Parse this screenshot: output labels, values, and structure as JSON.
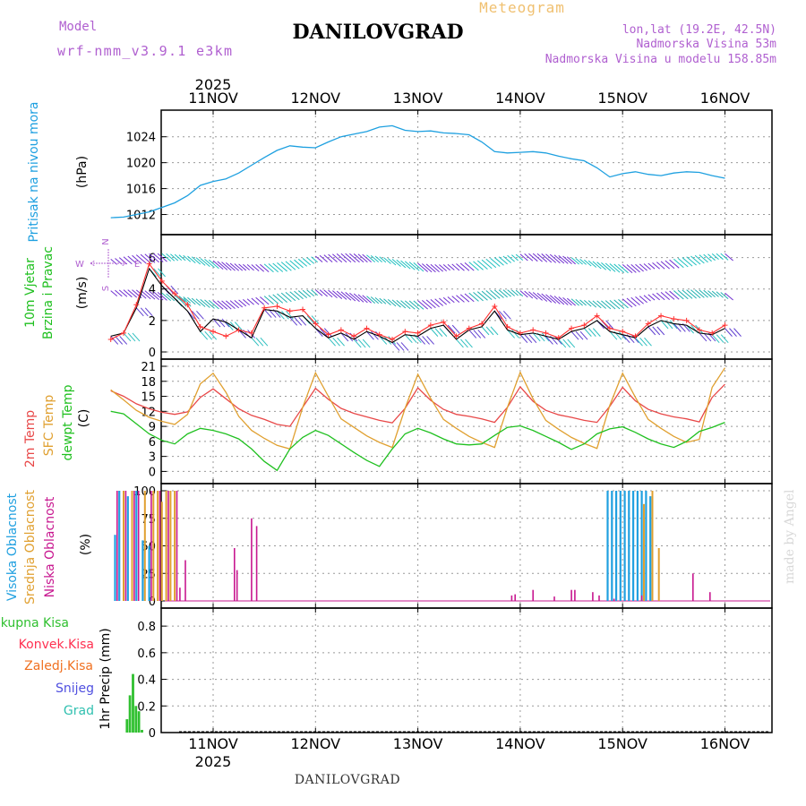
{
  "header": {
    "model_label": "Model",
    "model_name": "wrf-nmm_v3.9.1 e3km",
    "station": "DANILOVGRAD",
    "product": "Meteogram",
    "lonlat": "lon,lat (19.2E, 42.5N)",
    "elevation": "Nadmorska Visina 53m",
    "model_elevation": "Nadmorska Visina u modelu 158.85m",
    "footer_station": "DANILOVGRAD",
    "credit": "made by Angel"
  },
  "colors": {
    "pressure": "#1ea0e0",
    "wind_speed": "#000000",
    "gust": "#ff3030",
    "temp2m": "#e84848",
    "sfc_temp": "#e0a030",
    "dewpt": "#20c020",
    "high_cloud": "#20a0e0",
    "mid_cloud": "#e0a030",
    "low_cloud": "#c81890",
    "total_precip": "#30c030",
    "label_purple": "#b060d0",
    "label_orange": "#f0c070",
    "grid": "#999999"
  },
  "time_axis": {
    "year": "2025",
    "days": [
      "11NOV",
      "12NOV",
      "13NOV",
      "14NOV",
      "15NOV",
      "16NOV"
    ]
  },
  "chart_data": [
    {
      "type": "line",
      "id": "pressure",
      "ylabel_main": "Pritisak na nivou mora",
      "unit": "(hPa)",
      "ylim": [
        1010,
        1027
      ],
      "yticks": [
        "1012",
        "1016",
        "1020",
        "1024"
      ],
      "x_hours": [
        0,
        3,
        6,
        9,
        12,
        15,
        18,
        21,
        24,
        27,
        30,
        33,
        36,
        39,
        42,
        45,
        48,
        51,
        54,
        57,
        60,
        63,
        66,
        69,
        72,
        75,
        78,
        81,
        84,
        87,
        90,
        93,
        96,
        99,
        102,
        105,
        108,
        111,
        114,
        117,
        120,
        123,
        126,
        129,
        132,
        135,
        138,
        141,
        144
      ],
      "values": [
        1011.5,
        1011.6,
        1012.0,
        1012.4,
        1013.1,
        1013.8,
        1014.9,
        1016.5,
        1017.1,
        1017.5,
        1018.4,
        1019.6,
        1020.8,
        1021.9,
        1022.6,
        1022.4,
        1022.3,
        1023.2,
        1024.0,
        1024.4,
        1024.8,
        1025.5,
        1025.7,
        1025.0,
        1024.8,
        1024.9,
        1024.6,
        1024.5,
        1024.3,
        1023.2,
        1021.7,
        1021.5,
        1021.6,
        1021.7,
        1021.5,
        1021.0,
        1020.6,
        1020.3,
        1019.2,
        1017.8,
        1018.3,
        1018.6,
        1018.2,
        1018.0,
        1018.4,
        1018.6,
        1018.5,
        1018.0,
        1017.6
      ]
    },
    {
      "type": "line",
      "id": "wind",
      "ylabel_main": "10m Vjetar",
      "ylabel_sub": "Brzina i Pravac",
      "unit": "(m/s)",
      "compass": [
        "N",
        "W",
        "E",
        "S"
      ],
      "ylim": [
        0,
        7
      ],
      "yticks": [
        "0",
        "2",
        "4",
        "6"
      ],
      "x_hours": [
        0,
        3,
        6,
        9,
        12,
        15,
        18,
        21,
        24,
        27,
        30,
        33,
        36,
        39,
        42,
        45,
        48,
        51,
        54,
        57,
        60,
        63,
        66,
        69,
        72,
        75,
        78,
        81,
        84,
        87,
        90,
        93,
        96,
        99,
        102,
        105,
        108,
        111,
        114,
        117,
        120,
        123,
        126,
        129,
        132,
        135,
        138,
        141,
        144
      ],
      "series": [
        {
          "name": "speed",
          "values": [
            1.0,
            1.2,
            2.8,
            5.3,
            4.2,
            3.4,
            2.6,
            1.3,
            2.1,
            1.9,
            1.4,
            0.9,
            2.7,
            2.6,
            2.2,
            2.3,
            1.5,
            0.9,
            1.2,
            0.8,
            1.3,
            1.0,
            0.6,
            1.1,
            1.0,
            1.5,
            1.7,
            0.8,
            1.4,
            1.6,
            2.6,
            1.4,
            1.1,
            1.2,
            1.0,
            0.8,
            1.3,
            1.5,
            2.0,
            1.3,
            1.1,
            0.9,
            1.6,
            2.0,
            1.8,
            1.7,
            1.2,
            1.1,
            1.5
          ]
        },
        {
          "name": "gust",
          "values": [
            0.8,
            1.2,
            3.0,
            5.6,
            4.5,
            3.7,
            3.0,
            1.6,
            1.3,
            1.0,
            1.4,
            1.2,
            2.8,
            2.9,
            2.6,
            2.7,
            1.8,
            1.1,
            1.4,
            1.0,
            1.5,
            1.1,
            0.8,
            1.3,
            1.2,
            1.7,
            1.9,
            1.0,
            1.5,
            1.8,
            2.9,
            1.6,
            1.2,
            1.4,
            1.2,
            0.9,
            1.5,
            1.7,
            2.3,
            1.5,
            1.3,
            1.0,
            1.8,
            2.3,
            2.1,
            2.0,
            1.4,
            1.2,
            1.7
          ]
        }
      ]
    },
    {
      "type": "line",
      "id": "temperature",
      "ylabels": [
        "2m Temp",
        "SFC Temp",
        "dewpt Temp"
      ],
      "unit": "(C)",
      "ylim": [
        -1,
        21
      ],
      "yticks": [
        "0",
        "3",
        "6",
        "9",
        "12",
        "15",
        "18",
        "21"
      ],
      "x_hours": [
        0,
        3,
        6,
        9,
        12,
        15,
        18,
        21,
        24,
        27,
        30,
        33,
        36,
        39,
        42,
        45,
        48,
        51,
        54,
        57,
        60,
        63,
        66,
        69,
        72,
        75,
        78,
        81,
        84,
        87,
        90,
        93,
        96,
        99,
        102,
        105,
        108,
        111,
        114,
        117,
        120,
        123,
        126,
        129,
        132,
        135,
        138,
        141,
        144
      ],
      "series": [
        {
          "name": "2m Temp",
          "values": [
            16.1,
            15.0,
            13.5,
            12.5,
            11.8,
            11.4,
            11.9,
            14.8,
            16.5,
            14.5,
            12.5,
            11.2,
            10.4,
            9.4,
            9.0,
            12.8,
            16.6,
            14.4,
            12.6,
            11.6,
            10.9,
            10.2,
            9.7,
            12.6,
            16.7,
            14.2,
            12.4,
            11.4,
            11.0,
            10.5,
            9.8,
            12.8,
            16.9,
            14.0,
            12.2,
            11.3,
            10.8,
            10.2,
            9.8,
            13.0,
            16.8,
            14.1,
            12.4,
            11.5,
            10.9,
            10.5,
            9.9,
            14.8,
            17.4
          ]
        },
        {
          "name": "SFC Temp",
          "values": [
            16.3,
            14.3,
            12.2,
            10.8,
            10.0,
            9.4,
            11.4,
            17.5,
            19.6,
            15.8,
            11.0,
            8.2,
            6.6,
            5.2,
            4.5,
            12.8,
            19.7,
            15.0,
            10.5,
            8.8,
            7.1,
            5.8,
            4.8,
            12.6,
            19.4,
            14.6,
            10.4,
            8.6,
            7.0,
            5.8,
            4.8,
            12.8,
            19.8,
            14.5,
            10.2,
            8.4,
            6.8,
            5.6,
            4.6,
            13.2,
            19.6,
            14.8,
            10.4,
            8.6,
            7.0,
            5.8,
            6.4,
            16.8,
            20.7
          ]
        },
        {
          "name": "dewpt Temp",
          "values": [
            12.0,
            11.5,
            9.5,
            7.5,
            6.2,
            5.5,
            7.5,
            8.6,
            8.2,
            7.5,
            6.5,
            4.5,
            2.0,
            0.2,
            4.5,
            6.8,
            8.2,
            7.2,
            5.5,
            3.8,
            2.2,
            1.0,
            4.5,
            7.5,
            8.6,
            7.7,
            6.5,
            5.5,
            5.3,
            5.5,
            7.2,
            8.8,
            9.1,
            8.2,
            7.0,
            5.8,
            4.4,
            5.5,
            7.5,
            8.5,
            8.9,
            7.8,
            6.5,
            5.5,
            4.8,
            6.0,
            8.0,
            8.8,
            9.8
          ]
        }
      ]
    },
    {
      "type": "bar",
      "id": "cloud",
      "ylabels": [
        "Visoka Oblacnost",
        "Srednja Oblacnost",
        "Niska Oblacnost"
      ],
      "unit": "(%)",
      "ylim": [
        0,
        100
      ],
      "yticks": [
        "0",
        "25",
        "50",
        "75",
        "100"
      ],
      "series": [
        {
          "name": "Visoka Oblacnost",
          "x_hours": [
            1.0,
            2.0,
            4.0,
            6.0,
            7.5,
            9.0,
            116.5,
            117.5,
            118.5,
            119.5,
            120.5,
            121.5,
            122.5,
            123.5,
            124.5,
            125.5,
            126.5
          ],
          "values": [
            60,
            100,
            95,
            100,
            55,
            50,
            100,
            100,
            100,
            100,
            100,
            100,
            100,
            100,
            100,
            100,
            95
          ]
        },
        {
          "name": "Srednja Oblacnost",
          "x_hours": [
            3.0,
            5.0,
            8.0,
            10.0,
            11.0,
            12.0,
            13.0,
            14.0,
            15.0,
            125.0,
            127.0,
            128.5
          ],
          "values": [
            100,
            100,
            100,
            100,
            100,
            90,
            100,
            100,
            100,
            88,
            100,
            48
          ]
        },
        {
          "name": "Niska Oblacnost",
          "x_hours": [
            1.5,
            3.5,
            5.5,
            6.5,
            9.5,
            11.5,
            13.5,
            15.5,
            16.2,
            17.5,
            29.0,
            29.6,
            33.0,
            34.2,
            94.0,
            94.8,
            99.0,
            104.0,
            108.0,
            108.8,
            113.0,
            114.5,
            118.0,
            124.5,
            136.5,
            140.5
          ],
          "values": [
            100,
            100,
            100,
            100,
            100,
            100,
            100,
            100,
            12,
            37,
            48,
            28,
            75,
            68,
            5,
            6,
            10,
            4,
            10,
            10,
            8,
            5,
            2,
            5,
            25,
            8
          ]
        }
      ]
    },
    {
      "type": "bar",
      "id": "precip",
      "ylabels": [
        "Ukupna Kisa",
        "Konvek.Kisa",
        "Zaledj.Kisa",
        "Snijeg",
        "Grad"
      ],
      "unit": "1hr Precip (mm)",
      "ylim": [
        0,
        1
      ],
      "yticks": [
        "0",
        "0.2",
        "0.4",
        "0.6",
        "0.8"
      ],
      "series": [
        {
          "name": "Ukupna Kisa",
          "x_hours": [
            3.8,
            4.5,
            5.2,
            5.9,
            6.6,
            7.3
          ],
          "values": [
            0.1,
            0.28,
            0.44,
            0.2,
            0.16,
            0.02
          ]
        }
      ]
    }
  ]
}
